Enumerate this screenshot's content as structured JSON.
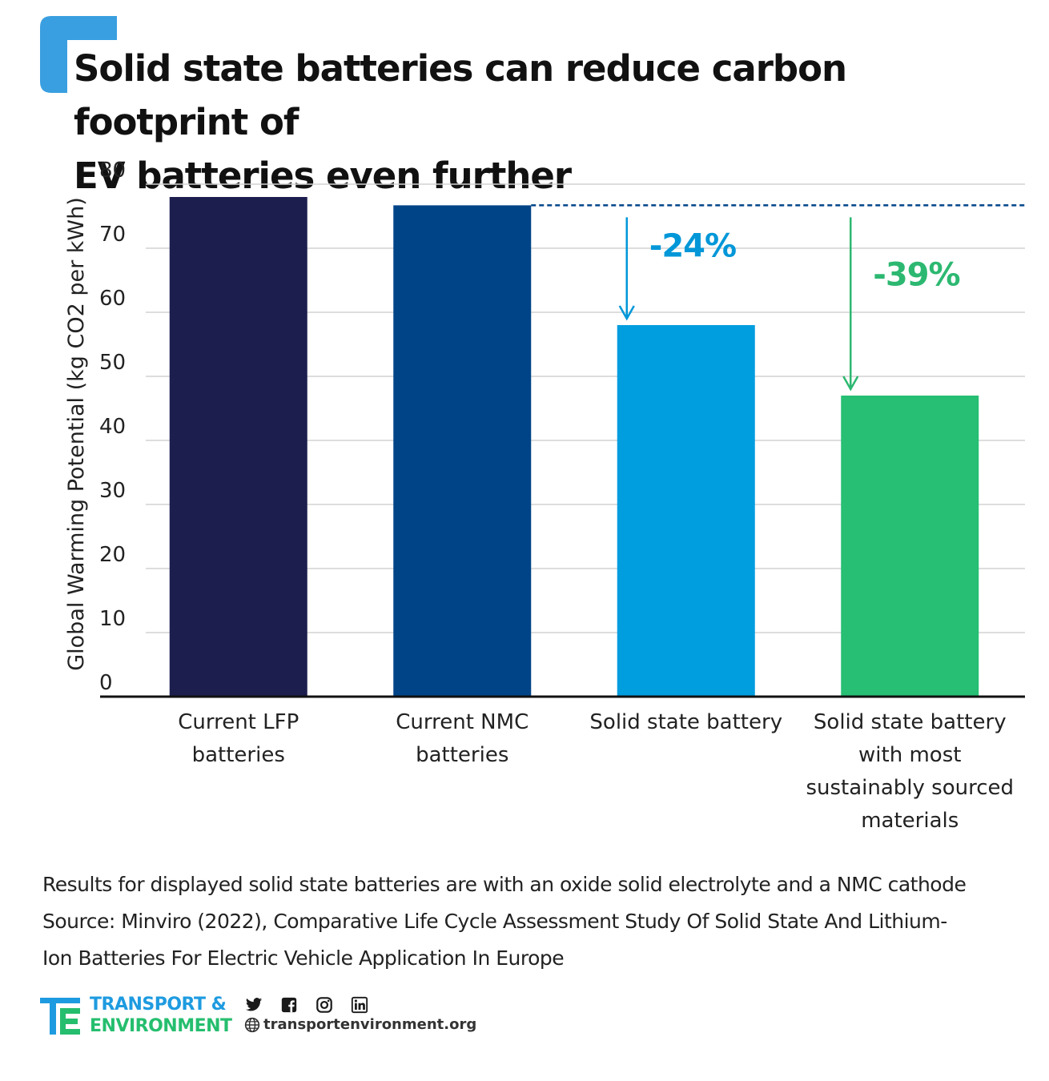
{
  "title_lines": [
    "Solid state batteries can reduce carbon footprint of",
    "EV batteries even further"
  ],
  "chart_data": {
    "type": "bar",
    "title": "Solid state batteries can reduce carbon footprint of EV batteries even further",
    "ylabel": "Global Warming Potential (kg CO2 per kWh)",
    "xlabel": "",
    "ylim": [
      0,
      80
    ],
    "yticks": [
      0,
      10,
      20,
      30,
      40,
      50,
      60,
      70,
      80
    ],
    "grid": true,
    "categories": [
      [
        "Current LFP",
        "batteries"
      ],
      [
        "Current NMC",
        "batteries"
      ],
      [
        "Solid state battery"
      ],
      [
        "Solid state battery",
        "with most",
        "sustainably sourced",
        "materials"
      ]
    ],
    "values": [
      78,
      76.7,
      58,
      47
    ],
    "bar_colors": [
      "#1c1f4e",
      "#004488",
      "#009ddf",
      "#26bf73"
    ],
    "reference_line": {
      "value": 76.7,
      "style": "dashed",
      "color": "#004488"
    },
    "annotations": [
      {
        "text": "-24%",
        "category_index": 2,
        "color": "#0097d8"
      },
      {
        "text": "-39%",
        "category_index": 3,
        "color": "#2db871"
      }
    ]
  },
  "footnote_lines": [
    "Results for displayed solid state batteries are with an oxide solid electrolyte and a NMC cathode",
    "Source: Minviro (2022), Comparative Life Cycle Assessment Study Of Solid State And Lithium-",
    "Ion Batteries For Electric Vehicle Application In Europe"
  ],
  "footer": {
    "logo_line1": "TRANSPORT &",
    "logo_line2": "ENVIRONMENT",
    "website": "transportenvironment.org",
    "social_icons": [
      "twitter-icon",
      "facebook-icon",
      "instagram-icon",
      "linkedin-icon"
    ]
  },
  "colors": {
    "brand_blue": "#1e9be0",
    "brand_green": "#25be6e"
  }
}
